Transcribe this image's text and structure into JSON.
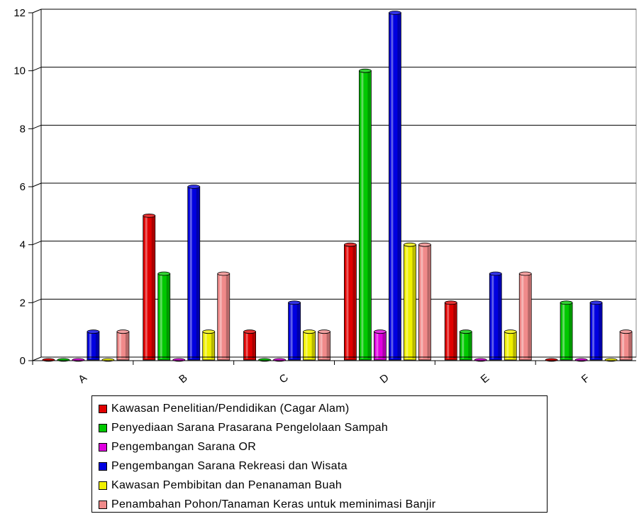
{
  "chart_data": {
    "type": "bar",
    "categories": [
      "A",
      "B",
      "C",
      "D",
      "E",
      "F"
    ],
    "ylim": [
      0,
      12
    ],
    "yticks": [
      0,
      2,
      4,
      6,
      8,
      10,
      12
    ],
    "grid": true,
    "legend_position": "bottom",
    "series": [
      {
        "name": "Kawasan Penelitian/Pendidikan (Cagar Alam)",
        "color": "#e00000",
        "values": [
          0,
          5,
          1,
          4,
          2,
          0
        ]
      },
      {
        "name": "Penyediaan Sarana Prasarana Pengelolaan Sampah",
        "color": "#00c800",
        "values": [
          0,
          3,
          0,
          10,
          1,
          2
        ]
      },
      {
        "name": "Pengembangan Sarana OR",
        "color": "#e000e0",
        "values": [
          0,
          0,
          0,
          1,
          0,
          0
        ]
      },
      {
        "name": "Pengembangan Sarana Rekreasi dan Wisata",
        "color": "#0000e0",
        "values": [
          1,
          6,
          2,
          12,
          3,
          2
        ]
      },
      {
        "name": "Kawasan Pembibitan dan Penanaman Buah",
        "color": "#f0f000",
        "values": [
          0,
          1,
          1,
          4,
          1,
          0
        ]
      },
      {
        "name": "Penambahan Pohon/Tanaman Keras untuk meminimasi Banjir",
        "color": "#f08a8a",
        "values": [
          1,
          3,
          1,
          4,
          3,
          1
        ]
      }
    ]
  }
}
